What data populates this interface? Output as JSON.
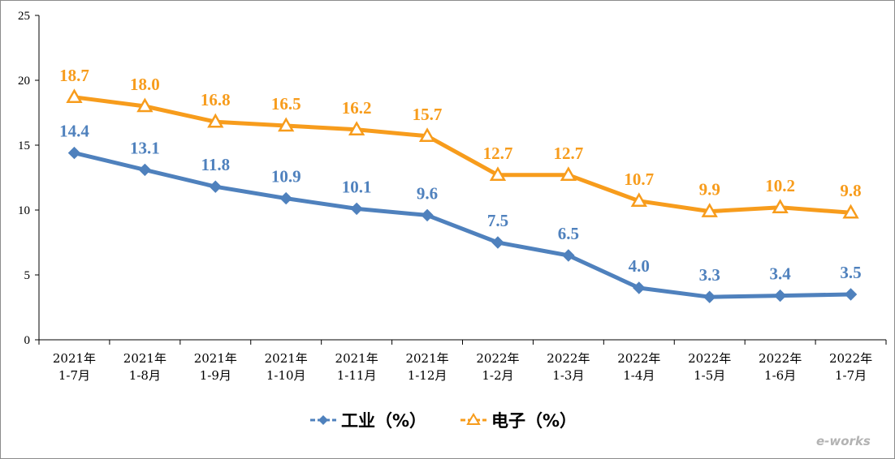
{
  "chart_data": {
    "type": "line",
    "categories": [
      [
        "2021年",
        "1-7月"
      ],
      [
        "2021年",
        "1-8月"
      ],
      [
        "2021年",
        "1-9月"
      ],
      [
        "2021年",
        "1-10月"
      ],
      [
        "2021年",
        "1-11月"
      ],
      [
        "2021年",
        "1-12月"
      ],
      [
        "2022年",
        "1-2月"
      ],
      [
        "2022年",
        "1-3月"
      ],
      [
        "2022年",
        "1-4月"
      ],
      [
        "2022年",
        "1-5月"
      ],
      [
        "2022年",
        "1-6月"
      ],
      [
        "2022年",
        "1-7月"
      ]
    ],
    "series": [
      {
        "name": "工业（%）",
        "color": "#4f81bd",
        "marker": "diamond",
        "values": [
          14.4,
          13.1,
          11.8,
          10.9,
          10.1,
          9.6,
          7.5,
          6.5,
          4.0,
          3.3,
          3.4,
          3.5
        ],
        "labels": [
          "14.4",
          "13.1",
          "11.8",
          "10.9",
          "10.1",
          "9.6",
          "7.5",
          "6.5",
          "4.0",
          "3.3",
          "3.4",
          "3.5"
        ]
      },
      {
        "name": "电子（%）",
        "color": "#f79c1c",
        "marker": "triangle",
        "values": [
          18.7,
          18.0,
          16.8,
          16.5,
          16.2,
          15.7,
          12.7,
          12.7,
          10.7,
          9.9,
          10.2,
          9.8
        ],
        "labels": [
          "18.7",
          "18.0",
          "16.8",
          "16.5",
          "16.2",
          "15.7",
          "12.7",
          "12.7",
          "10.7",
          "9.9",
          "10.2",
          "9.8"
        ]
      }
    ],
    "ylim": [
      0,
      25
    ],
    "yticks": [
      "0",
      "5",
      "10",
      "15",
      "20",
      "25"
    ],
    "grid": false,
    "legend_position": "bottom-center",
    "title": "",
    "xlabel": "",
    "ylabel": ""
  },
  "watermark": {
    "text": "e-works"
  }
}
